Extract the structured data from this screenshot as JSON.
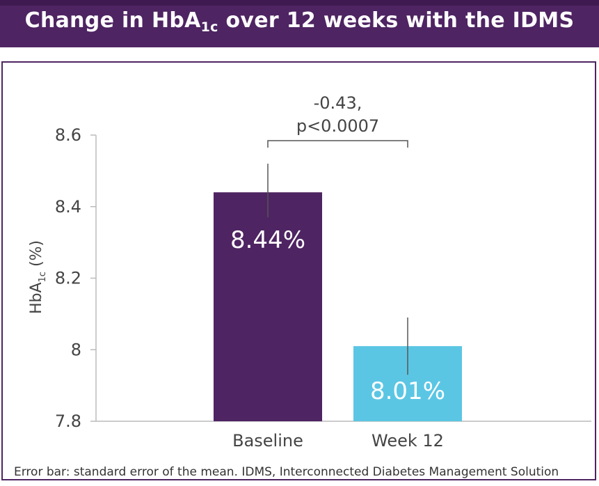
{
  "title": {
    "main": "Change in HbA",
    "subscript": "1c",
    "rest": " over 12 weeks with the IDMS"
  },
  "footnote": "Error bar: standard error of the mean. IDMS, Interconnected Diabetes Management Solution",
  "colors": {
    "title_bg": "#4e2462",
    "baseline_bar": "#4e2462",
    "week12_bar": "#5bc6e4",
    "axis": "#bbbbbb",
    "text": "#444444"
  },
  "chart_data": {
    "type": "bar",
    "categories": [
      "Baseline",
      "Week 12"
    ],
    "values": [
      8.44,
      8.01
    ],
    "value_labels": [
      "8.44%",
      "8.01%"
    ],
    "error_upper": [
      8.52,
      8.09
    ],
    "error_lower": [
      8.37,
      7.93
    ],
    "ylim": [
      7.8,
      8.6
    ],
    "yticks": [
      "7.8",
      "8",
      "8.2",
      "8.4",
      "8.6"
    ],
    "ytick_values": [
      7.8,
      8.0,
      8.2,
      8.4,
      8.6
    ],
    "ylabel_main": "HbA",
    "ylabel_sub": "1c",
    "ylabel_unit": " (%)",
    "xlabel": "",
    "annotation": {
      "line1": "-0.43,",
      "line2": "p<0.0007"
    }
  }
}
